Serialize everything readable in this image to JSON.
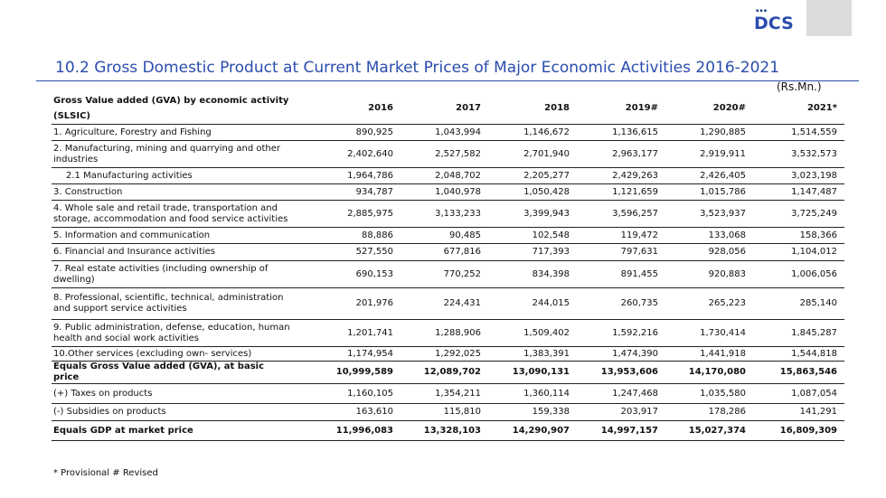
{
  "logo": {
    "text": "DCS",
    "dots": "▪▪▪"
  },
  "title": "10.2 Gross Domestic Product at Current Market Prices of  Major Economic Activities  2016-2021",
  "unit": "(Rs.Mn.)",
  "table": {
    "header_label": "Gross Value added (GVA) by economic activity (SLSIC)",
    "years": [
      "2016",
      "2017",
      "2018",
      "2019#",
      "2020#",
      "2021*"
    ],
    "rows": [
      {
        "label": "1. Agriculture, Forestry and Fishing",
        "values": [
          "890,925",
          "1,043,994",
          "1,146,672",
          "1,136,615",
          "1,290,885",
          "1,514,559"
        ]
      },
      {
        "label": "2. Manufacturing, mining and quarrying and other industries",
        "values": [
          "2,402,640",
          "2,527,582",
          "2,701,940",
          "2,963,177",
          "2,919,911",
          "3,532,573"
        ]
      },
      {
        "label": "2.1 Manufacturing activities",
        "values": [
          "1,964,786",
          "2,048,702",
          "2,205,277",
          "2,429,263",
          "2,426,405",
          "3,023,198"
        ]
      },
      {
        "label": "3. Construction",
        "values": [
          "934,787",
          "1,040,978",
          "1,050,428",
          "1,121,659",
          "1,015,786",
          "1,147,487"
        ]
      },
      {
        "label": "4. Whole sale and retail trade, transportation and storage,  accommodation and food service activities",
        "values": [
          "2,885,975",
          "3,133,233",
          "3,399,943",
          "3,596,257",
          "3,523,937",
          "3,725,249"
        ]
      },
      {
        "label": "5. Information and communication",
        "values": [
          "88,886",
          "90,485",
          "102,548",
          "119,472",
          "133,068",
          "158,366"
        ]
      },
      {
        "label": "6. Financial and Insurance activities",
        "values": [
          "527,550",
          "677,816",
          "717,393",
          "797,631",
          "928,056",
          "1,104,012"
        ]
      },
      {
        "label": "7. Real estate activities (including ownership of dwelling)",
        "values": [
          "690,153",
          "770,252",
          "834,398",
          "891,455",
          "920,883",
          "1,006,056"
        ]
      },
      {
        "label": "8. Professional, scientific, technical, administration and support service activities",
        "values": [
          "201,976",
          "224,431",
          "244,015",
          "260,735",
          "265,223",
          "285,140"
        ]
      },
      {
        "label": "9. Public administration, defense, education, human health and social work activities",
        "values": [
          "1,201,741",
          "1,288,906",
          "1,509,402",
          "1,592,216",
          "1,730,414",
          "1,845,287"
        ]
      },
      {
        "label": "10.Other services (excluding own- services)",
        "values": [
          "1,174,954",
          "1,292,025",
          "1,383,391",
          "1,474,390",
          "1,441,918",
          "1,544,818"
        ]
      },
      {
        "label": "Equals Gross Value added (GVA), at basic price",
        "values": [
          "10,999,589",
          "12,089,702",
          "13,090,131",
          "13,953,606",
          "14,170,080",
          "15,863,546"
        ]
      },
      {
        "label": "(+) Taxes on products",
        "values": [
          "1,160,105",
          "1,354,211",
          "1,360,114",
          "1,247,468",
          "1,035,580",
          "1,087,054"
        ]
      },
      {
        "label": "(-) Subsidies on products",
        "values": [
          "163,610",
          "115,810",
          "159,338",
          "203,917",
          "178,286",
          "141,291"
        ]
      },
      {
        "label": "Equals GDP at market price",
        "values": [
          "11,996,083",
          "13,328,103",
          "14,290,907",
          "14,997,157",
          "15,027,374",
          "16,809,309"
        ]
      }
    ]
  },
  "footnote": "* Provisional   # Revised"
}
